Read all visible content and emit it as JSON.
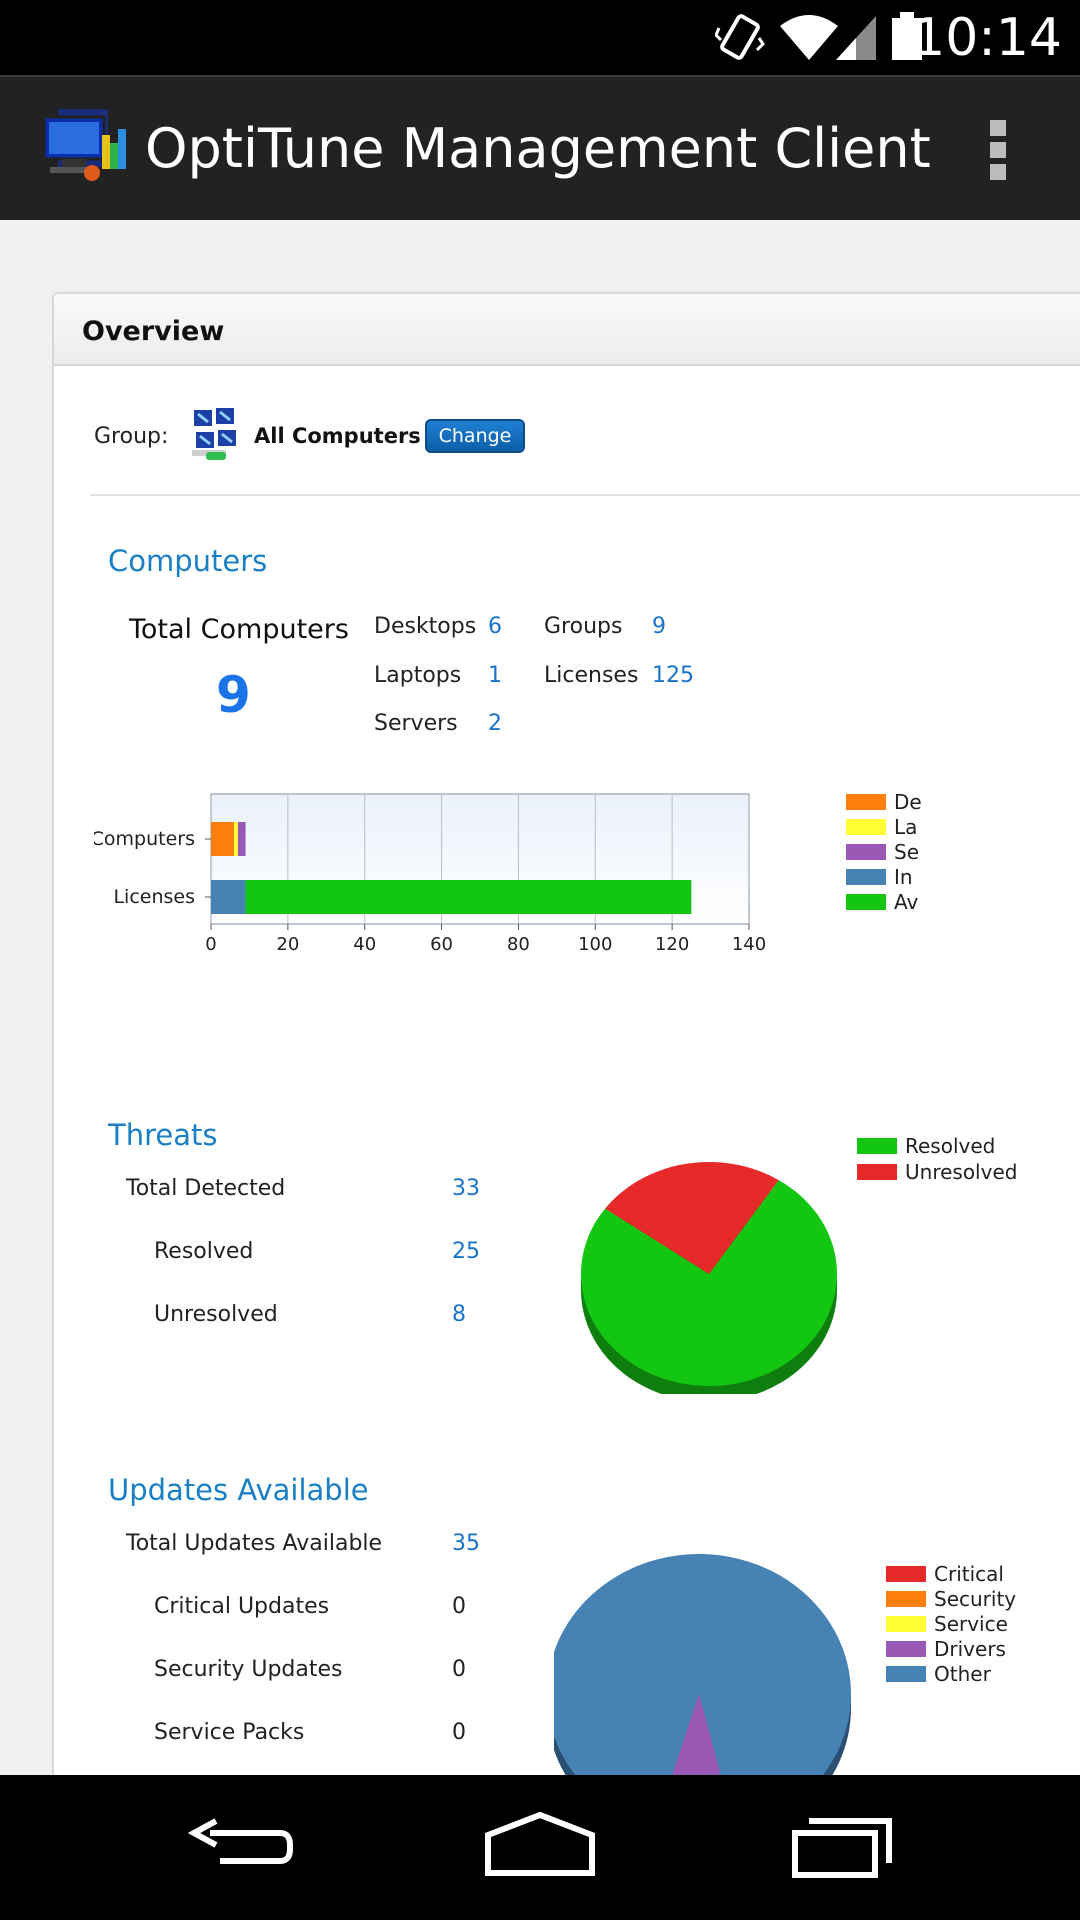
{
  "status_bar": {
    "time": "10:14"
  },
  "app_bar": {
    "title": "OptiTune Management Client"
  },
  "overview": {
    "title": "Overview",
    "group_label": "Group:",
    "group_name": "All Computers",
    "change_label": "Change"
  },
  "computers": {
    "title": "Computers",
    "total_label": "Total Computers",
    "total_value": "9",
    "stats": [
      {
        "label": "Desktops",
        "value": "6"
      },
      {
        "label": "Laptops",
        "value": "1"
      },
      {
        "label": "Servers",
        "value": "2"
      },
      {
        "label": "Groups",
        "value": "9"
      },
      {
        "label": "Licenses",
        "value": "125"
      }
    ]
  },
  "threats": {
    "title": "Threats",
    "total_label": "Total Detected",
    "total_value": "33",
    "resolved_label": "Resolved",
    "resolved_value": "25",
    "unresolved_label": "Unresolved",
    "unresolved_value": "8"
  },
  "updates": {
    "title": "Updates Available",
    "total_label": "Total Updates Available",
    "total_value": "35",
    "rows": [
      {
        "label": "Critical Updates",
        "value": "0"
      },
      {
        "label": "Security Updates",
        "value": "0"
      },
      {
        "label": "Service Packs",
        "value": "0"
      }
    ]
  },
  "colors": {
    "orange": "#ff7f0e",
    "yellow": "#ffff33",
    "purple": "#9b59b6",
    "blue": "#4682b4",
    "green": "#12c612",
    "red": "#e62a2a"
  },
  "chart_data": [
    {
      "type": "bar",
      "orientation": "horizontal",
      "stacked": true,
      "categories": [
        "Computers",
        "Licenses"
      ],
      "series": [
        {
          "name": "De",
          "color": "#ff7f0e",
          "values": [
            6,
            0
          ]
        },
        {
          "name": "La",
          "color": "#ffff33",
          "values": [
            1,
            0
          ]
        },
        {
          "name": "Se",
          "color": "#9b59b6",
          "values": [
            2,
            0
          ]
        },
        {
          "name": "In",
          "color": "#4682b4",
          "values": [
            0,
            9
          ]
        },
        {
          "name": "Av",
          "color": "#12c612",
          "values": [
            0,
            116
          ]
        }
      ],
      "xticks": [
        0,
        20,
        40,
        60,
        80,
        100,
        120,
        140
      ],
      "xlim": [
        0,
        140
      ],
      "grid": true,
      "legend": "right"
    },
    {
      "type": "pie",
      "slices": [
        {
          "name": "Resolved",
          "value": 25,
          "color": "#12c612"
        },
        {
          "name": "Unresolved",
          "value": 8,
          "color": "#e62a2a"
        }
      ],
      "legend": "top-right"
    },
    {
      "type": "pie",
      "slices": [
        {
          "name": "Critical",
          "value": 0,
          "color": "#e62a2a"
        },
        {
          "name": "Security",
          "value": 0,
          "color": "#ff7f0e"
        },
        {
          "name": "Service",
          "value": 0,
          "color": "#ffff33"
        },
        {
          "name": "Drivers",
          "value": 3,
          "color": "#9b59b6"
        },
        {
          "name": "Other",
          "value": 32,
          "color": "#4682b4"
        }
      ],
      "legend": "right"
    }
  ]
}
